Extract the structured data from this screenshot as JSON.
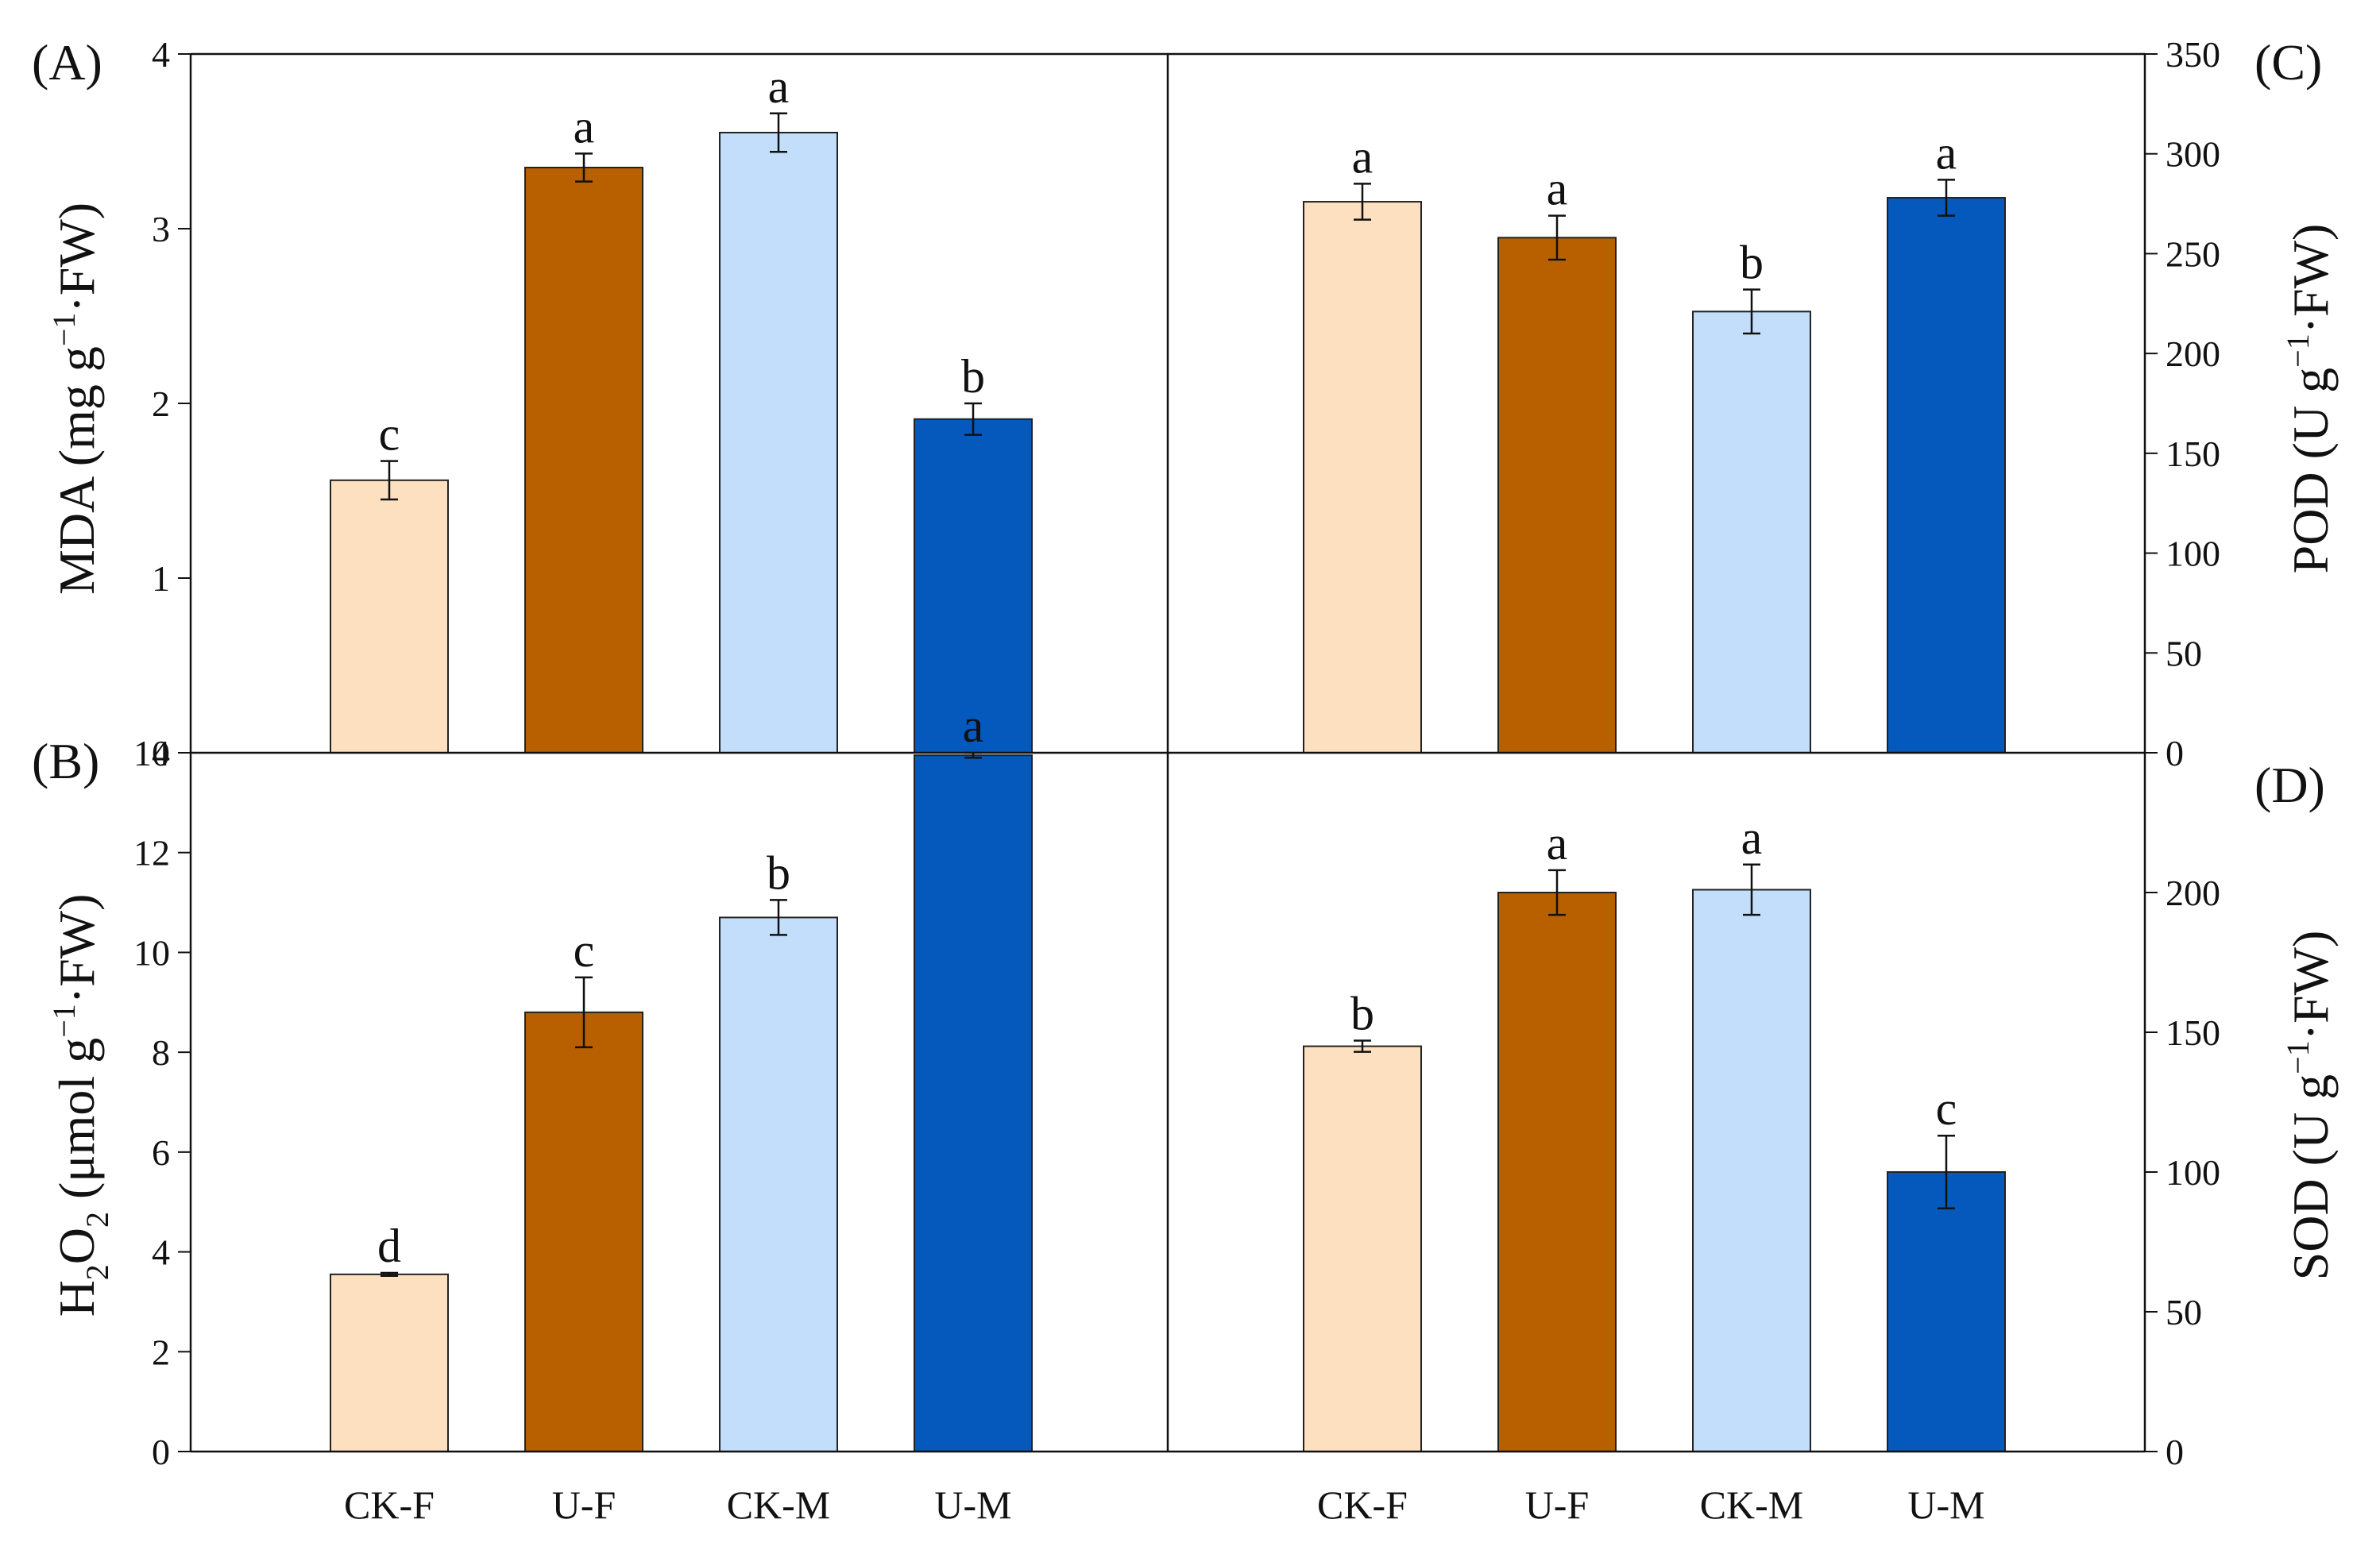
{
  "categories": [
    "CK-F",
    "U-F",
    "CK-M",
    "U-M"
  ],
  "colors": {
    "CK-F": "#fde0c0",
    "U-F": "#b86000",
    "CK-M": "#c2defb",
    "U-M": "#0559bd"
  },
  "chart_data": [
    {
      "type": "bar",
      "panel_label": "(A)",
      "ylabel_text": "MDA (mg g",
      "ylabel_sup": "−1",
      "ylabel_tail": "·FW)",
      "ylim": [
        0,
        4
      ],
      "yticks": [
        0,
        1,
        2,
        3,
        4
      ],
      "axis_side": "left",
      "categories": [
        "CK-F",
        "U-F",
        "CK-M",
        "U-M"
      ],
      "values": [
        1.56,
        3.35,
        3.55,
        1.91
      ],
      "errors": [
        0.11,
        0.08,
        0.11,
        0.09
      ],
      "letters": [
        "c",
        "a",
        "a",
        "b"
      ]
    },
    {
      "type": "bar",
      "panel_label": "(B)",
      "ylabel_text": "H",
      "ylabel_sub1": "2",
      "ylabel_mid": "O",
      "ylabel_sub2": "2",
      "ylabel_rest": " (μmol g",
      "ylabel_sup": "−1",
      "ylabel_tail": "·FW)",
      "ylim": [
        0,
        14
      ],
      "yticks": [
        0,
        2,
        4,
        6,
        8,
        10,
        12,
        14
      ],
      "axis_side": "left",
      "categories": [
        "CK-F",
        "U-F",
        "CK-M",
        "U-M"
      ],
      "values": [
        3.55,
        8.8,
        10.7,
        13.95
      ],
      "errors": [
        0.03,
        0.7,
        0.35,
        0.05
      ],
      "letters": [
        "d",
        "c",
        "b",
        "a"
      ]
    },
    {
      "type": "bar",
      "panel_label": "(C)",
      "ylabel_text": "POD (U g",
      "ylabel_sup": "−1",
      "ylabel_tail": "·FW)",
      "ylim": [
        0,
        350
      ],
      "yticks": [
        0,
        50,
        100,
        150,
        200,
        250,
        300,
        350
      ],
      "axis_side": "right",
      "categories": [
        "CK-F",
        "U-F",
        "CK-M",
        "U-M"
      ],
      "values": [
        276,
        258,
        221,
        278
      ],
      "errors": [
        9,
        11,
        11,
        9
      ],
      "letters": [
        "a",
        "a",
        "b",
        "a"
      ]
    },
    {
      "type": "bar",
      "panel_label": "(D)",
      "ylabel_text": "SOD (U g",
      "ylabel_sup": "−1",
      "ylabel_tail": "·FW)",
      "ylim": [
        0,
        250
      ],
      "yticks": [
        0,
        50,
        100,
        150,
        200
      ],
      "axis_side": "right",
      "categories": [
        "CK-F",
        "U-F",
        "CK-M",
        "U-M"
      ],
      "values": [
        145,
        200,
        201,
        100
      ],
      "errors": [
        2,
        8,
        9,
        13
      ],
      "letters": [
        "b",
        "a",
        "a",
        "c"
      ]
    }
  ]
}
